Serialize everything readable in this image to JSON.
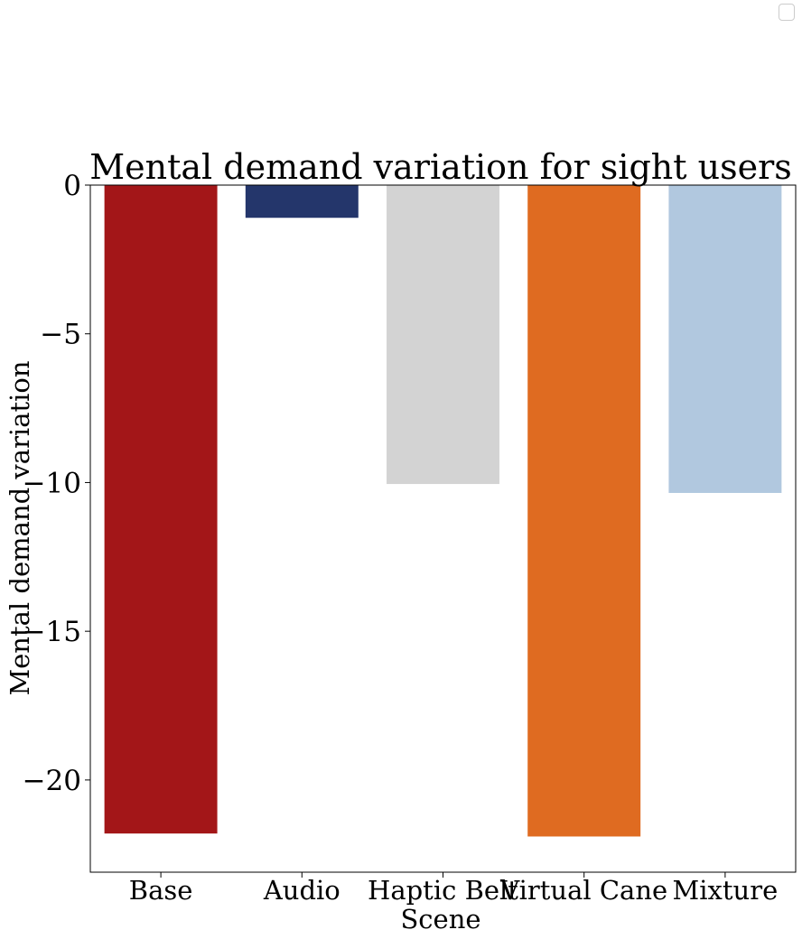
{
  "chart_data": {
    "type": "bar",
    "title": "Mental demand variation for sight users",
    "xlabel": "Scene",
    "ylabel": "Mental demand variation",
    "categories": [
      "Base",
      "Audio",
      "Haptic Belt",
      "Virtual Cane",
      "Mixture"
    ],
    "values": [
      -21.8,
      -1.1,
      -10.05,
      -21.9,
      -10.35
    ],
    "colors": [
      "#a31618",
      "#24366b",
      "#d3d3d3",
      "#df6b21",
      "#b1c8df"
    ],
    "ylim": [
      -23.1,
      0
    ],
    "yticks": [
      0,
      -5,
      -10,
      -15,
      -20
    ],
    "ytick_labels": [
      "0",
      "−5",
      "−10",
      "−15",
      "−20"
    ],
    "grid": false,
    "legend": "top-right (empty)"
  }
}
